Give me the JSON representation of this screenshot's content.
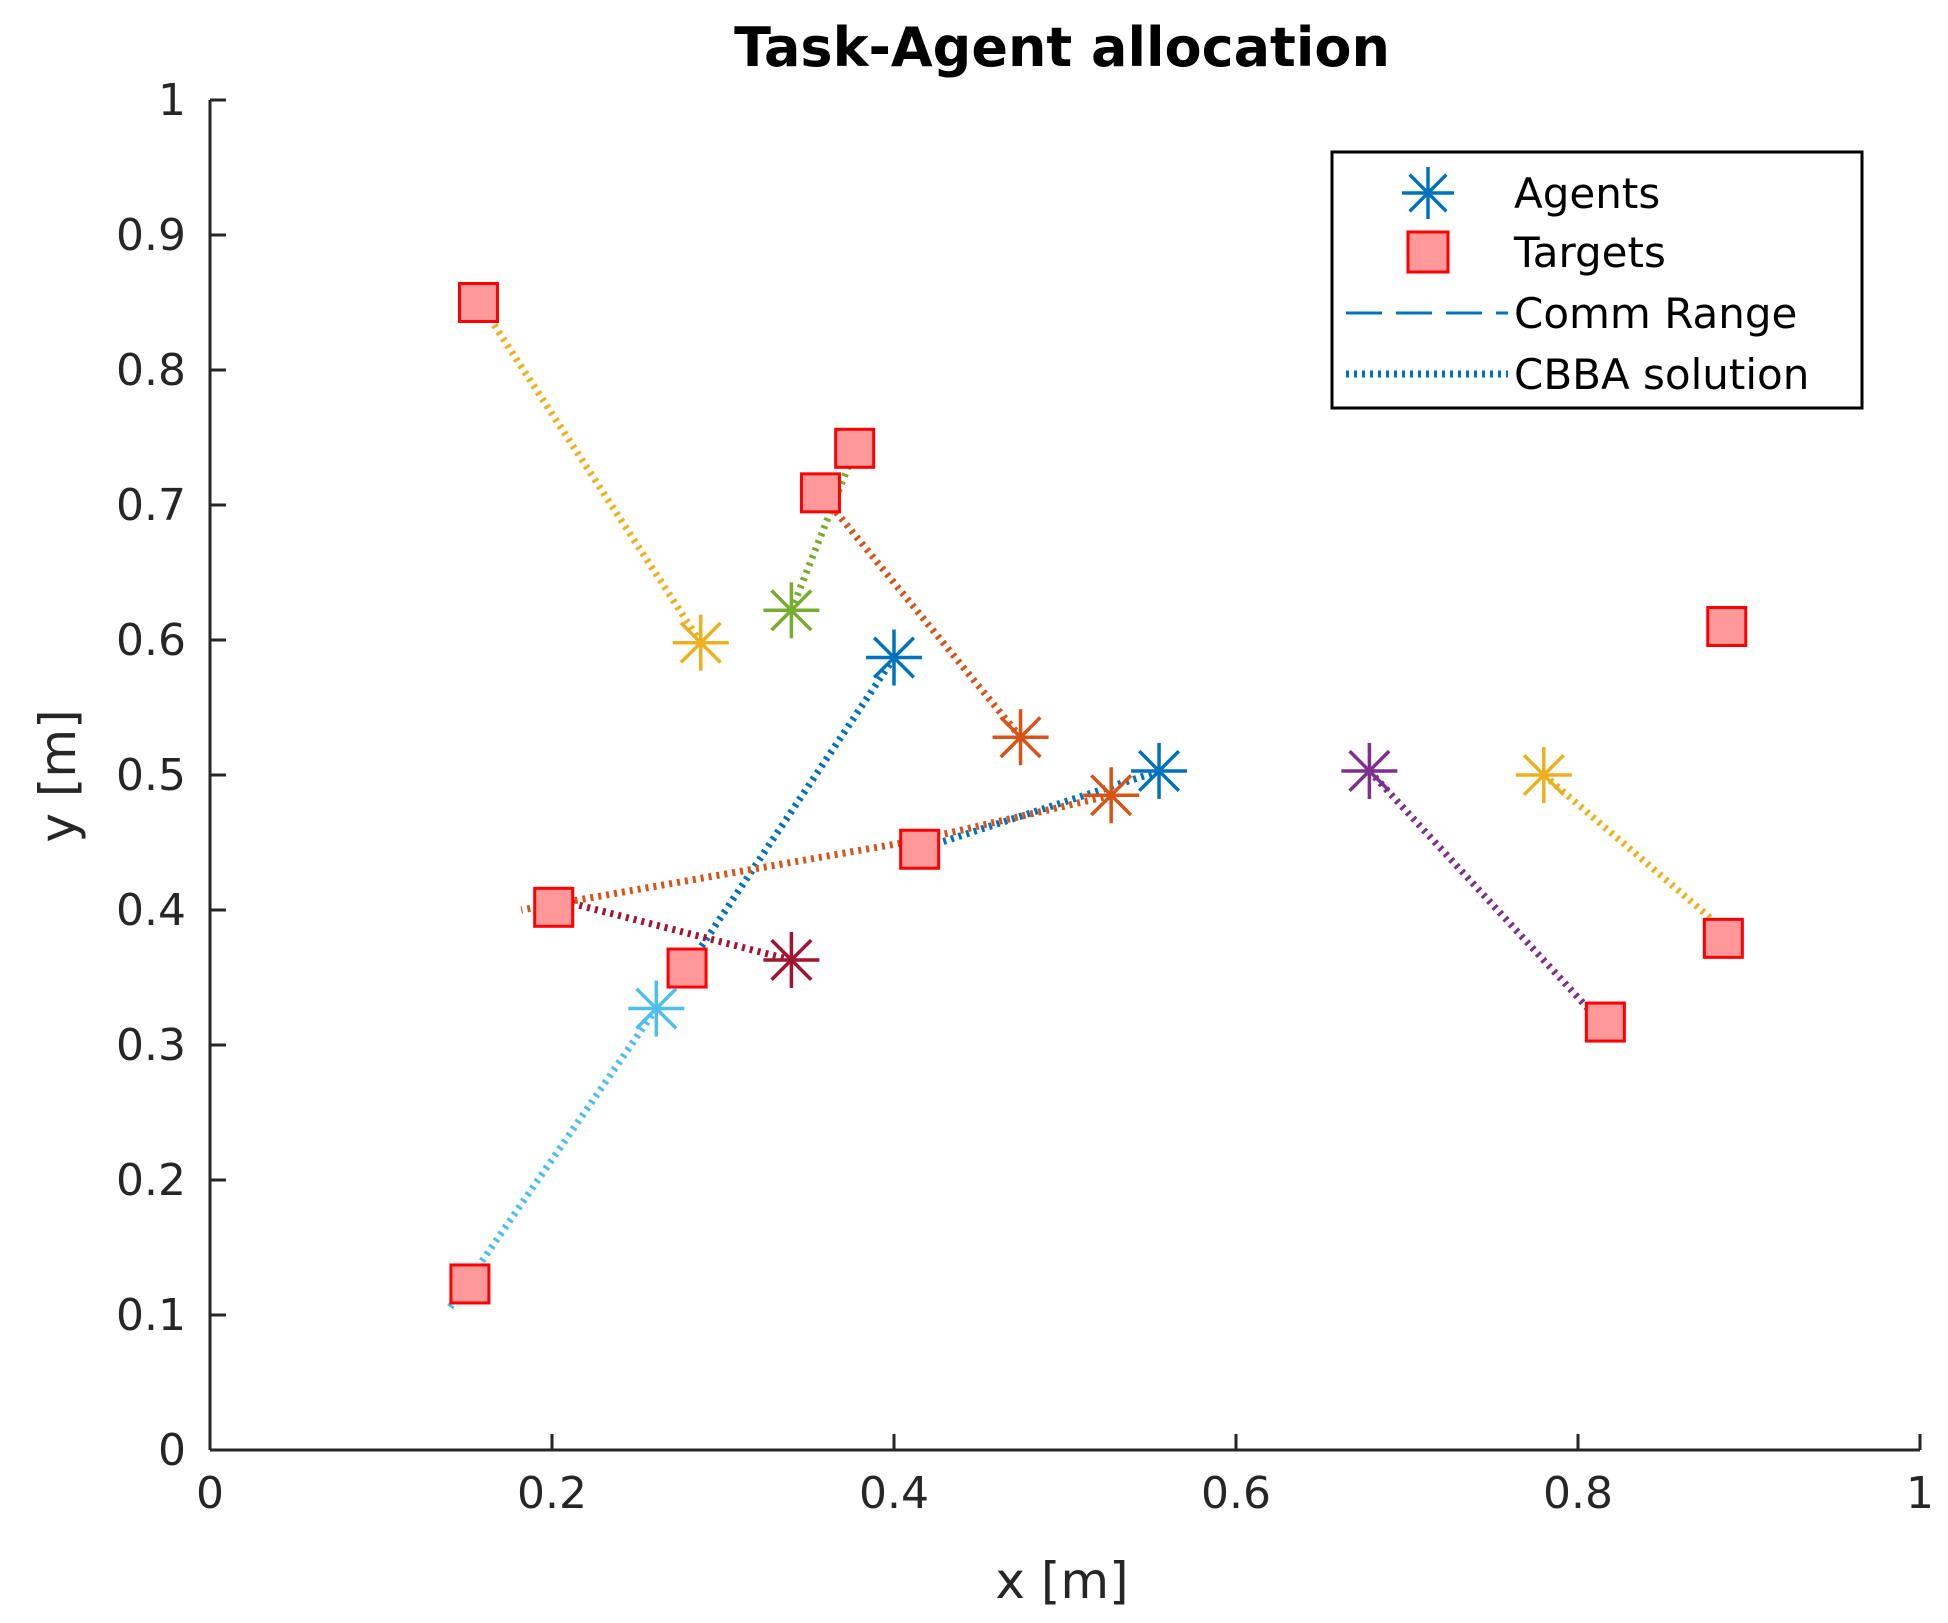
{
  "chart_data": {
    "type": "scatter",
    "title": "Task-Agent allocation",
    "xlabel": "x [m]",
    "ylabel": "y [m]",
    "xlim": [
      0,
      1
    ],
    "ylim": [
      0,
      1
    ],
    "xticks": [
      0,
      0.2,
      0.4,
      0.6,
      0.8,
      1
    ],
    "xtick_labels": [
      "0",
      "0.2",
      "0.4",
      "0.6",
      "0.8",
      "1"
    ],
    "yticks": [
      0,
      0.1,
      0.2,
      0.3,
      0.4,
      0.5,
      0.6,
      0.7,
      0.8,
      0.9,
      1
    ],
    "ytick_labels": [
      "0",
      "0.1",
      "0.2",
      "0.3",
      "0.4",
      "0.5",
      "0.6",
      "0.7",
      "0.8",
      "0.9",
      "1"
    ],
    "grid": false,
    "legend": {
      "location": "top-right",
      "entries": [
        {
          "label": "Agents",
          "style": "asterisk",
          "color": "#0072BD"
        },
        {
          "label": "Targets",
          "style": "square",
          "color": "#FF0000",
          "fill": "#FF9999"
        },
        {
          "label": "Comm Range",
          "style": "dashed",
          "color": "#0072BD"
        },
        {
          "label": "CBBA solution",
          "style": "dotted",
          "color": "#0072BD"
        }
      ]
    },
    "targets": [
      {
        "x": 0.157,
        "y": 0.85
      },
      {
        "x": 0.377,
        "y": 0.742
      },
      {
        "x": 0.357,
        "y": 0.709
      },
      {
        "x": 0.887,
        "y": 0.61
      },
      {
        "x": 0.415,
        "y": 0.445
      },
      {
        "x": 0.201,
        "y": 0.402
      },
      {
        "x": 0.279,
        "y": 0.357
      },
      {
        "x": 0.885,
        "y": 0.379
      },
      {
        "x": 0.816,
        "y": 0.317
      },
      {
        "x": 0.152,
        "y": 0.123
      }
    ],
    "agents": [
      {
        "name": "agent-blue-1",
        "x": 0.4,
        "y": 0.587,
        "color": "#0072BD"
      },
      {
        "name": "agent-blue-2",
        "x": 0.555,
        "y": 0.503,
        "color": "#0072BD"
      },
      {
        "name": "agent-orange-1",
        "x": 0.474,
        "y": 0.528,
        "color": "#D95319"
      },
      {
        "name": "agent-orange-2",
        "x": 0.527,
        "y": 0.485,
        "color": "#D95319"
      },
      {
        "name": "agent-yellow-1",
        "x": 0.287,
        "y": 0.598,
        "color": "#EDB120"
      },
      {
        "name": "agent-yellow-2",
        "x": 0.78,
        "y": 0.5,
        "color": "#EDB120"
      },
      {
        "name": "agent-green",
        "x": 0.34,
        "y": 0.622,
        "color": "#77AC30"
      },
      {
        "name": "agent-purple",
        "x": 0.678,
        "y": 0.503,
        "color": "#7E2F8E"
      },
      {
        "name": "agent-cyan",
        "x": 0.261,
        "y": 0.327,
        "color": "#4DBEEE"
      },
      {
        "name": "agent-darkred",
        "x": 0.34,
        "y": 0.363,
        "color": "#A2142F"
      }
    ],
    "paths": [
      {
        "name": "path-blue-1",
        "color": "#0072BD",
        "points": [
          [
            0.4,
            0.587
          ],
          [
            0.279,
            0.357
          ]
        ]
      },
      {
        "name": "path-blue-2",
        "color": "#0072BD",
        "points": [
          [
            0.555,
            0.503
          ],
          [
            0.415,
            0.445
          ]
        ]
      },
      {
        "name": "path-orange-1",
        "color": "#D95319",
        "points": [
          [
            0.474,
            0.528
          ],
          [
            0.357,
            0.709
          ]
        ]
      },
      {
        "name": "path-orange-2",
        "color": "#D95319",
        "points": [
          [
            0.527,
            0.485
          ],
          [
            0.415,
            0.452
          ],
          [
            0.182,
            0.4
          ]
        ]
      },
      {
        "name": "path-yellow-1",
        "color": "#EDB120",
        "points": [
          [
            0.287,
            0.598
          ],
          [
            0.15,
            0.865
          ]
        ]
      },
      {
        "name": "path-yellow-2",
        "color": "#EDB120",
        "points": [
          [
            0.78,
            0.5
          ],
          [
            0.895,
            0.375
          ]
        ]
      },
      {
        "name": "path-green",
        "color": "#77AC30",
        "points": [
          [
            0.34,
            0.622
          ],
          [
            0.38,
            0.75
          ]
        ]
      },
      {
        "name": "path-purple",
        "color": "#7E2F8E",
        "points": [
          [
            0.678,
            0.503
          ],
          [
            0.822,
            0.305
          ]
        ]
      },
      {
        "name": "path-cyan",
        "color": "#4DBEEE",
        "points": [
          [
            0.261,
            0.327
          ],
          [
            0.14,
            0.105
          ]
        ]
      },
      {
        "name": "path-darkred",
        "color": "#A2142F",
        "points": [
          [
            0.34,
            0.363
          ],
          [
            0.196,
            0.41
          ]
        ]
      }
    ]
  }
}
